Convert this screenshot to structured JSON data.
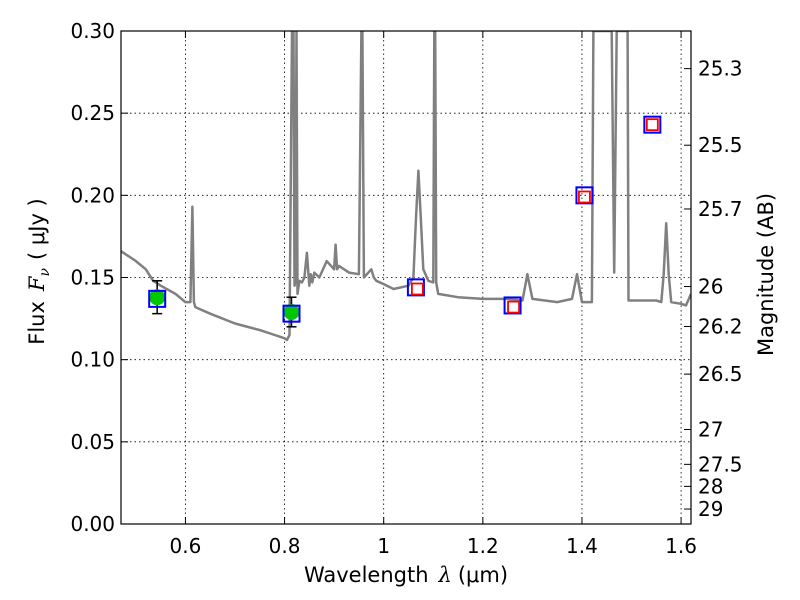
{
  "chart_data": {
    "type": "line",
    "title": "",
    "xlabel": "Wavelength",
    "xlabel_symbol": "λ",
    "xlabel_unit": "(μm)",
    "ylabel": "Flux",
    "ylabel_symbol": "F",
    "ylabel_subscript": "ν",
    "ylabel_unit": "( μJy )",
    "right_ylabel": "Magnitude (AB)",
    "xlim": [
      0.47,
      1.62
    ],
    "ylim": [
      0.0,
      0.3
    ],
    "grid": true,
    "x_ticks": [
      {
        "value": 0.6,
        "label": "0.6"
      },
      {
        "value": 0.8,
        "label": "0.8"
      },
      {
        "value": 1.0,
        "label": "1"
      },
      {
        "value": 1.2,
        "label": "1.2"
      },
      {
        "value": 1.4,
        "label": "1.4"
      },
      {
        "value": 1.6,
        "label": "1.6"
      }
    ],
    "y_ticks": [
      {
        "value": 0.0,
        "label": "0.00"
      },
      {
        "value": 0.05,
        "label": "0.05"
      },
      {
        "value": 0.1,
        "label": "0.10"
      },
      {
        "value": 0.15,
        "label": "0.15"
      },
      {
        "value": 0.2,
        "label": "0.20"
      },
      {
        "value": 0.25,
        "label": "0.25"
      },
      {
        "value": 0.3,
        "label": "0.30"
      }
    ],
    "right_ticks": [
      {
        "flux": 0.2771,
        "label": "25.3"
      },
      {
        "flux": 0.2305,
        "label": "25.5"
      },
      {
        "flux": 0.1917,
        "label": "25.7"
      },
      {
        "flux": 0.1445,
        "label": "26"
      },
      {
        "flux": 0.1202,
        "label": "26.2"
      },
      {
        "flux": 0.0912,
        "label": "26.5"
      },
      {
        "flux": 0.0575,
        "label": "27"
      },
      {
        "flux": 0.0363,
        "label": "27.5"
      },
      {
        "flux": 0.0229,
        "label": "28"
      },
      {
        "flux": 0.0091,
        "label": "29"
      }
    ],
    "series": [
      {
        "name": "model_spectrum",
        "kind": "line",
        "color": "#808080",
        "x": [
          0.47,
          0.5,
          0.52,
          0.535,
          0.55,
          0.58,
          0.6,
          0.61,
          0.614,
          0.617,
          0.62,
          0.65,
          0.7,
          0.75,
          0.78,
          0.8,
          0.805,
          0.81,
          0.815,
          0.818,
          0.82,
          0.822,
          0.824,
          0.826,
          0.83,
          0.835,
          0.84,
          0.845,
          0.85,
          0.853,
          0.856,
          0.86,
          0.87,
          0.885,
          0.9,
          0.903,
          0.906,
          0.91,
          0.93,
          0.95,
          0.955,
          0.956,
          0.957,
          0.96,
          0.975,
          0.98,
          0.985,
          1.0,
          1.02,
          1.05,
          1.06,
          1.065,
          1.07,
          1.075,
          1.08,
          1.09,
          1.1,
          1.102,
          1.104,
          1.106,
          1.11,
          1.15,
          1.2,
          1.25,
          1.28,
          1.29,
          1.3,
          1.35,
          1.38,
          1.39,
          1.4,
          1.41,
          1.42,
          1.423,
          1.426,
          1.43,
          1.45,
          1.46,
          1.465,
          1.47,
          1.48,
          1.49,
          1.492,
          1.494,
          1.5,
          1.55,
          1.56,
          1.565,
          1.57,
          1.575,
          1.58,
          1.6,
          1.61,
          1.62
        ],
        "y": [
          0.166,
          0.16,
          0.155,
          0.148,
          0.145,
          0.14,
          0.135,
          0.135,
          0.193,
          0.135,
          0.132,
          0.128,
          0.122,
          0.118,
          0.115,
          0.113,
          0.112,
          0.115,
          0.3,
          0.3,
          0.145,
          0.147,
          0.3,
          0.14,
          0.148,
          0.147,
          0.15,
          0.165,
          0.145,
          0.152,
          0.147,
          0.153,
          0.15,
          0.16,
          0.155,
          0.17,
          0.155,
          0.157,
          0.153,
          0.152,
          0.3,
          0.3,
          0.3,
          0.15,
          0.155,
          0.15,
          0.148,
          0.146,
          0.143,
          0.145,
          0.15,
          0.185,
          0.215,
          0.185,
          0.155,
          0.148,
          0.147,
          0.3,
          0.3,
          0.147,
          0.14,
          0.138,
          0.137,
          0.137,
          0.136,
          0.152,
          0.137,
          0.135,
          0.137,
          0.152,
          0.135,
          0.135,
          0.135,
          0.3,
          0.3,
          0.3,
          0.3,
          0.3,
          0.153,
          0.3,
          0.3,
          0.3,
          0.3,
          0.136,
          0.136,
          0.136,
          0.135,
          0.152,
          0.183,
          0.152,
          0.135,
          0.134,
          0.133,
          0.14
        ]
      },
      {
        "name": "observed_photometry",
        "kind": "points_with_errorbars",
        "color": "#00c800",
        "points": [
          {
            "x": 0.543,
            "y": 0.138,
            "err": 0.01
          },
          {
            "x": 0.814,
            "y": 0.129,
            "err": 0.009
          }
        ]
      },
      {
        "name": "model_photometry",
        "kind": "open_squares",
        "color": "#0000ff",
        "points": [
          {
            "x": 0.543,
            "y": 0.137
          },
          {
            "x": 0.814,
            "y": 0.128
          },
          {
            "x": 1.065,
            "y": 0.144
          },
          {
            "x": 1.26,
            "y": 0.133
          },
          {
            "x": 1.405,
            "y": 0.2
          },
          {
            "x": 1.542,
            "y": 0.243
          }
        ]
      },
      {
        "name": "predicted_photometry",
        "kind": "open_squares",
        "color": "#ff0000",
        "points": [
          {
            "x": 1.068,
            "y": 0.143
          },
          {
            "x": 1.262,
            "y": 0.132
          },
          {
            "x": 1.405,
            "y": 0.199
          },
          {
            "x": 1.542,
            "y": 0.243
          }
        ]
      }
    ]
  }
}
